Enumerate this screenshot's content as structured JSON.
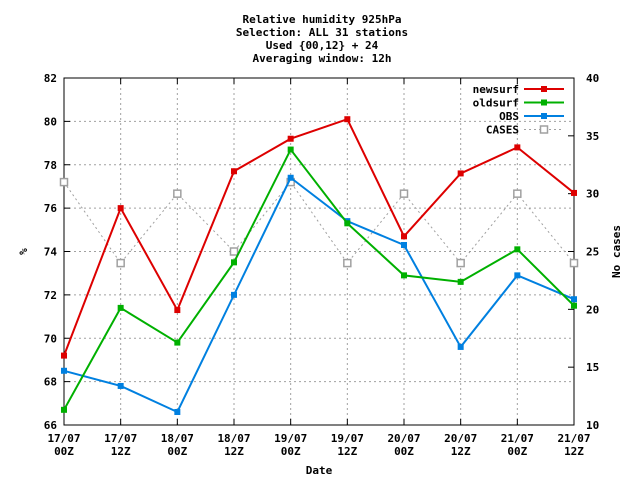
{
  "chart_data": {
    "type": "line",
    "title_lines": [
      "Relative humidity 925hPa",
      "Selection: ALL     31 stations",
      "Used {00,12} + 24",
      "Averaging window: 12h"
    ],
    "xlabel": "Date",
    "ylabel": "%",
    "y2label": "No cases",
    "ylim": [
      66,
      82
    ],
    "y_ticks": [
      "66",
      "68",
      "70",
      "72",
      "74",
      "76",
      "78",
      "80",
      "82"
    ],
    "y2lim": [
      10,
      40
    ],
    "y2_ticks": [
      "10",
      "15",
      "20",
      "25",
      "30",
      "35",
      "40"
    ],
    "categories": [
      {
        "date": "17/07",
        "hour": "00Z"
      },
      {
        "date": "17/07",
        "hour": "12Z"
      },
      {
        "date": "18/07",
        "hour": "00Z"
      },
      {
        "date": "18/07",
        "hour": "12Z"
      },
      {
        "date": "19/07",
        "hour": "00Z"
      },
      {
        "date": "19/07",
        "hour": "12Z"
      },
      {
        "date": "20/07",
        "hour": "00Z"
      },
      {
        "date": "20/07",
        "hour": "12Z"
      },
      {
        "date": "21/07",
        "hour": "00Z"
      },
      {
        "date": "21/07",
        "hour": "12Z"
      }
    ],
    "grid": true,
    "legend_position": "top-right",
    "series": [
      {
        "name": "newsurf",
        "axis": "left",
        "color": "#dd0000",
        "marker": "filled",
        "dashed": false,
        "values": [
          69.2,
          76.0,
          71.3,
          77.7,
          79.2,
          80.1,
          74.7,
          77.6,
          78.8,
          76.7
        ]
      },
      {
        "name": "oldsurf",
        "axis": "left",
        "color": "#00b000",
        "marker": "filled",
        "dashed": false,
        "values": [
          66.7,
          71.4,
          69.8,
          73.5,
          78.7,
          75.3,
          72.9,
          72.6,
          74.1,
          71.5
        ]
      },
      {
        "name": "OBS",
        "axis": "left",
        "color": "#0080e0",
        "marker": "filled",
        "dashed": false,
        "values": [
          68.5,
          67.8,
          66.6,
          72.0,
          77.4,
          75.4,
          74.3,
          69.6,
          72.9,
          71.8
        ]
      },
      {
        "name": "CASES",
        "axis": "right",
        "color": "#a0a0a0",
        "marker": "open",
        "dashed": true,
        "values": [
          31,
          24,
          30,
          25,
          31,
          24,
          30,
          24,
          30,
          24
        ]
      }
    ]
  }
}
